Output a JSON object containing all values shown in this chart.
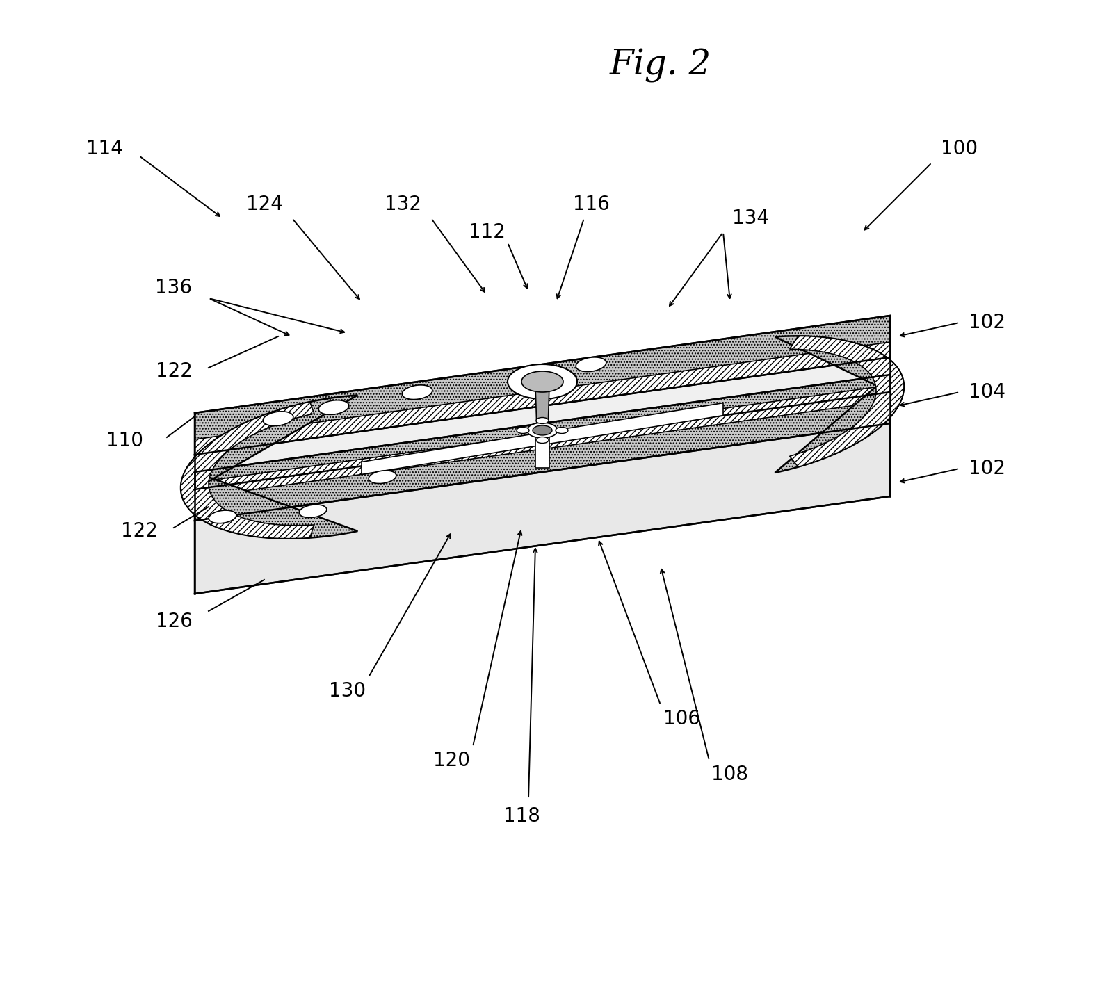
{
  "title": "Fig. 2",
  "title_fontsize": 36,
  "background_color": "#ffffff",
  "label_fontsize": 20,
  "stipple_fc": "#c8c8c8",
  "hatch_fc": "#ffffff",
  "lw_main": 1.8
}
